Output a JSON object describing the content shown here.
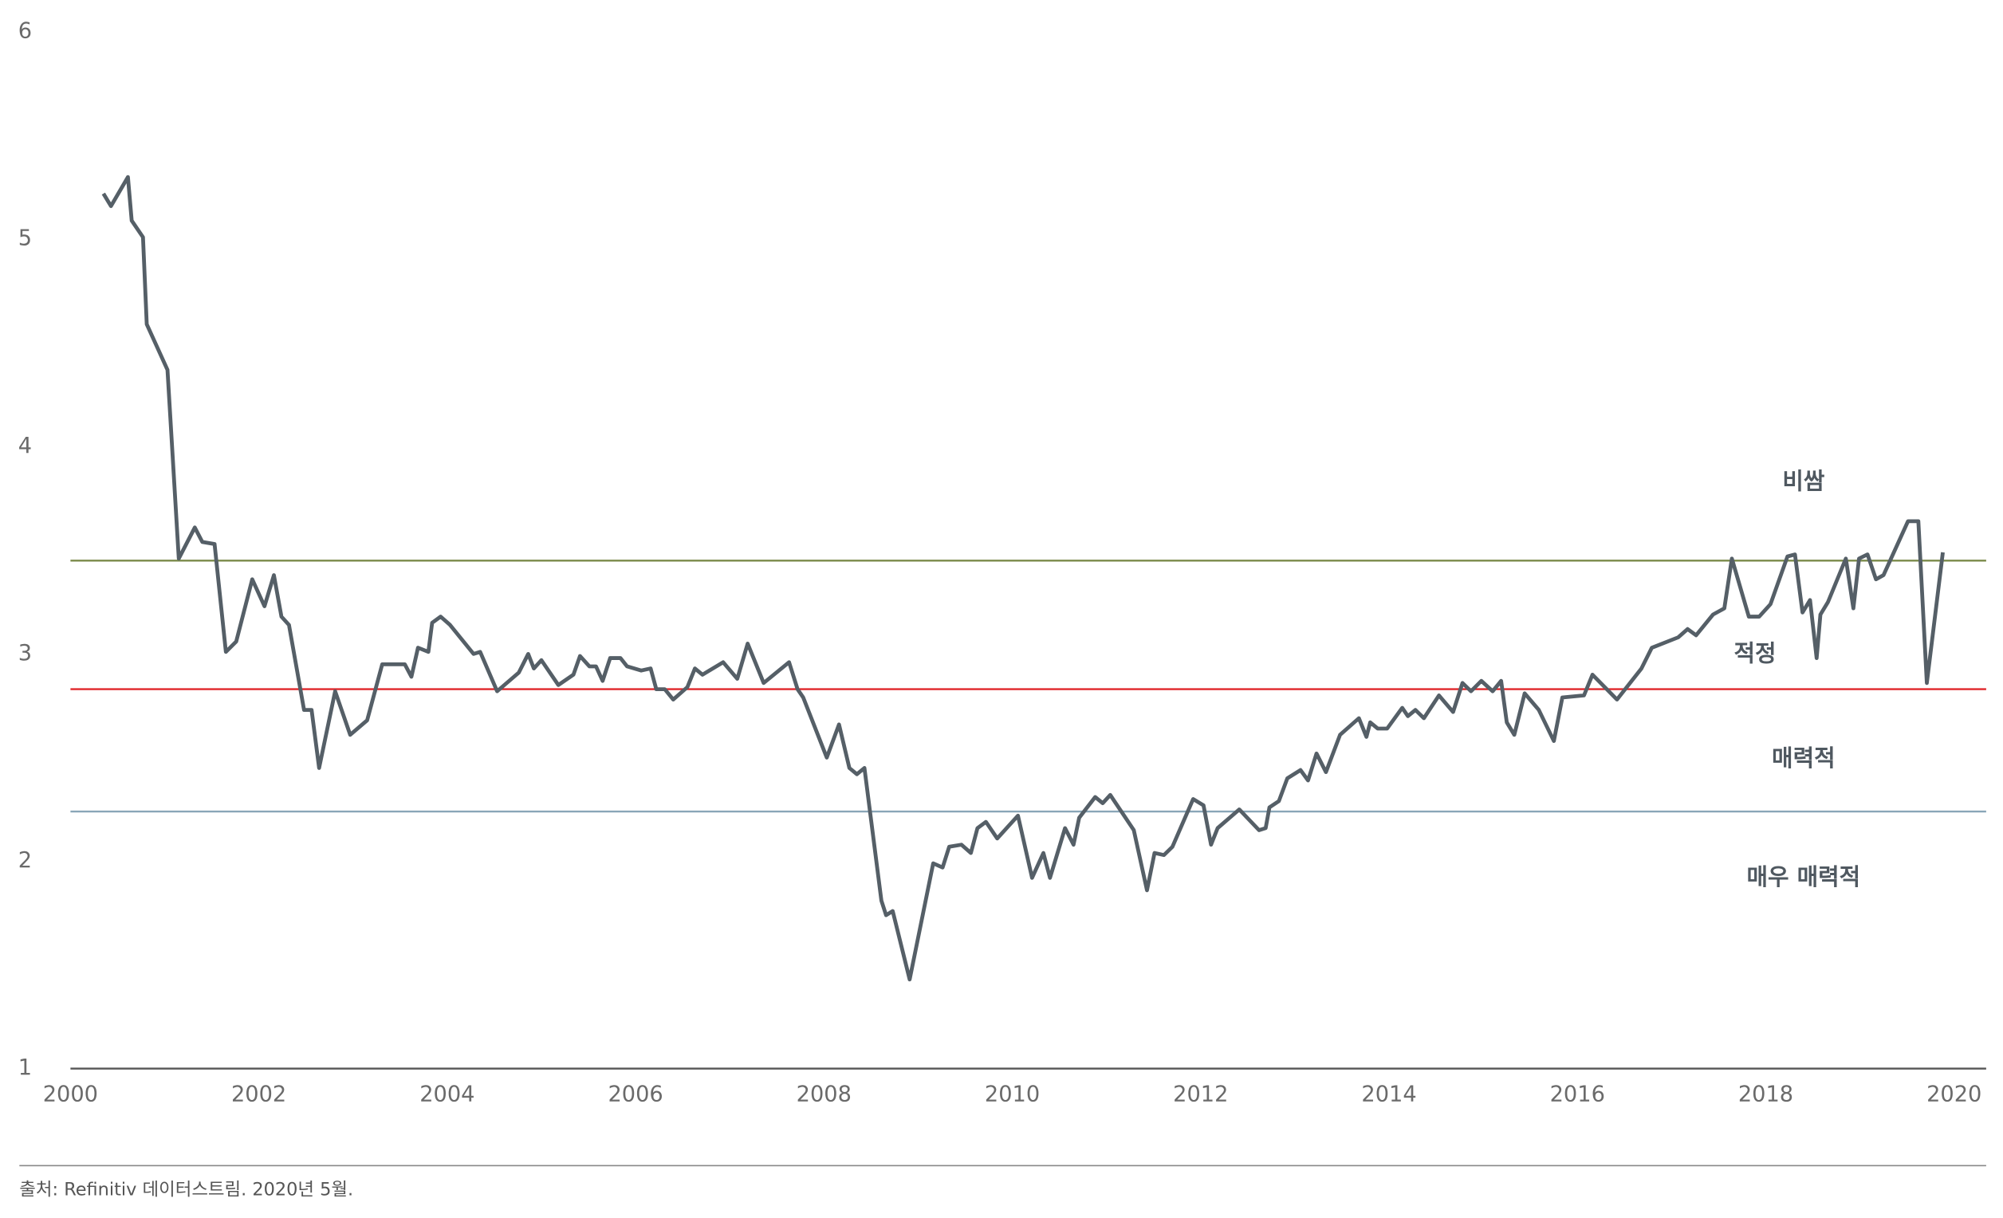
{
  "chart_data": {
    "type": "line",
    "x": [
      2000.35,
      2000.43,
      2000.61,
      2000.65,
      2000.77,
      2000.81,
      2001.03,
      2001.15,
      2001.32,
      2001.4,
      2001.53,
      2001.65,
      2001.76,
      2001.93,
      2002.06,
      2002.16,
      2002.24,
      2002.32,
      2002.48,
      2002.56,
      2002.64,
      2002.81,
      2002.97,
      2003.15,
      2003.31,
      2003.55,
      2003.62,
      2003.69,
      2003.8,
      2003.84,
      2003.93,
      2004.03,
      2004.28,
      2004.35,
      2004.53,
      2004.76,
      2004.86,
      2004.92,
      2005.0,
      2005.18,
      2005.34,
      2005.41,
      2005.51,
      2005.58,
      2005.65,
      2005.73,
      2005.84,
      2005.91,
      2006.06,
      2006.16,
      2006.22,
      2006.31,
      2006.4,
      2006.55,
      2006.63,
      2006.71,
      2006.93,
      2007.08,
      2007.19,
      2007.36,
      2007.63,
      2007.72,
      2007.78,
      2008.03,
      2008.16,
      2008.27,
      2008.35,
      2008.43,
      2008.61,
      2008.66,
      2008.73,
      2008.91,
      2009.16,
      2009.26,
      2009.33,
      2009.46,
      2009.56,
      2009.63,
      2009.72,
      2009.84,
      2010.06,
      2010.21,
      2010.33,
      2010.4,
      2010.56,
      2010.65,
      2010.71,
      2010.88,
      2010.96,
      2011.04,
      2011.29,
      2011.43,
      2011.51,
      2011.61,
      2011.7,
      2011.92,
      2012.03,
      2012.11,
      2012.18,
      2012.41,
      2012.62,
      2012.69,
      2012.73,
      2012.83,
      2012.92,
      2013.06,
      2013.14,
      2013.23,
      2013.33,
      2013.48,
      2013.68,
      2013.76,
      2013.8,
      2013.88,
      2013.98,
      2014.14,
      2014.2,
      2014.28,
      2014.37,
      2014.53,
      2014.68,
      2014.78,
      2014.87,
      2014.98,
      2015.1,
      2015.19,
      2015.25,
      2015.33,
      2015.44,
      2015.59,
      2015.75,
      2015.84,
      2016.07,
      2016.16,
      2016.42,
      2016.68,
      2016.79,
      2017.07,
      2017.17,
      2017.26,
      2017.44,
      2017.56,
      2017.64,
      2017.82,
      2017.93,
      2018.05,
      2018.23,
      2018.31,
      2018.39,
      2018.47,
      2018.54,
      2018.58,
      2018.66,
      2018.85,
      2018.93,
      2018.99,
      2019.08,
      2019.17,
      2019.25,
      2019.51,
      2019.62,
      2019.71,
      2019.88
    ],
    "values": [
      5.22,
      5.16,
      5.3,
      5.09,
      5.01,
      4.59,
      4.37,
      3.46,
      3.61,
      3.54,
      3.53,
      3.01,
      3.06,
      3.36,
      3.23,
      3.38,
      3.18,
      3.14,
      2.73,
      2.73,
      2.45,
      2.82,
      2.61,
      2.68,
      2.95,
      2.95,
      2.89,
      3.03,
      3.01,
      3.15,
      3.18,
      3.14,
      3.0,
      3.01,
      2.82,
      2.91,
      3.0,
      2.93,
      2.97,
      2.85,
      2.9,
      2.99,
      2.94,
      2.94,
      2.87,
      2.98,
      2.98,
      2.94,
      2.92,
      2.93,
      2.83,
      2.83,
      2.78,
      2.84,
      2.93,
      2.9,
      2.96,
      2.88,
      3.05,
      2.86,
      2.96,
      2.83,
      2.79,
      2.5,
      2.66,
      2.45,
      2.42,
      2.45,
      1.81,
      1.74,
      1.76,
      1.43,
      1.99,
      1.97,
      2.07,
      2.08,
      2.04,
      2.16,
      2.19,
      2.11,
      2.22,
      1.92,
      2.04,
      1.92,
      2.16,
      2.08,
      2.21,
      2.31,
      2.28,
      2.32,
      2.15,
      1.86,
      2.04,
      2.03,
      2.07,
      2.3,
      2.27,
      2.08,
      2.16,
      2.25,
      2.15,
      2.16,
      2.26,
      2.29,
      2.4,
      2.44,
      2.39,
      2.52,
      2.43,
      2.61,
      2.69,
      2.6,
      2.67,
      2.64,
      2.64,
      2.74,
      2.7,
      2.73,
      2.69,
      2.8,
      2.72,
      2.86,
      2.82,
      2.87,
      2.82,
      2.87,
      2.67,
      2.61,
      2.81,
      2.73,
      2.58,
      2.79,
      2.8,
      2.9,
      2.78,
      2.93,
      3.03,
      3.08,
      3.12,
      3.09,
      3.19,
      3.22,
      3.46,
      3.18,
      3.18,
      3.24,
      3.47,
      3.48,
      3.2,
      3.26,
      2.98,
      3.19,
      3.25,
      3.46,
      3.22,
      3.46,
      3.48,
      3.36,
      3.38,
      3.64,
      3.64,
      2.86,
      3.49
    ],
    "color": "#555f67",
    "xlim": [
      2000,
      2020.34
    ],
    "xticks": [
      2000,
      2002,
      2004,
      2006,
      2008,
      2010,
      2012,
      2014,
      2016,
      2018,
      2020
    ],
    "ylim": [
      1,
      6
    ],
    "yticks": [
      1,
      2,
      3,
      4,
      5,
      6
    ],
    "reference_lines": [
      {
        "value": 3.45,
        "color": "#7a8a4a"
      },
      {
        "value": 2.83,
        "color": "#e0262a"
      },
      {
        "value": 2.24,
        "color": "#8aa6b8"
      }
    ],
    "annotations": [
      "비쌈",
      "적정",
      "매력적",
      "매우 매력적"
    ],
    "source": "출처: Refinitiv 데이터스트림. 2020년 5월."
  }
}
